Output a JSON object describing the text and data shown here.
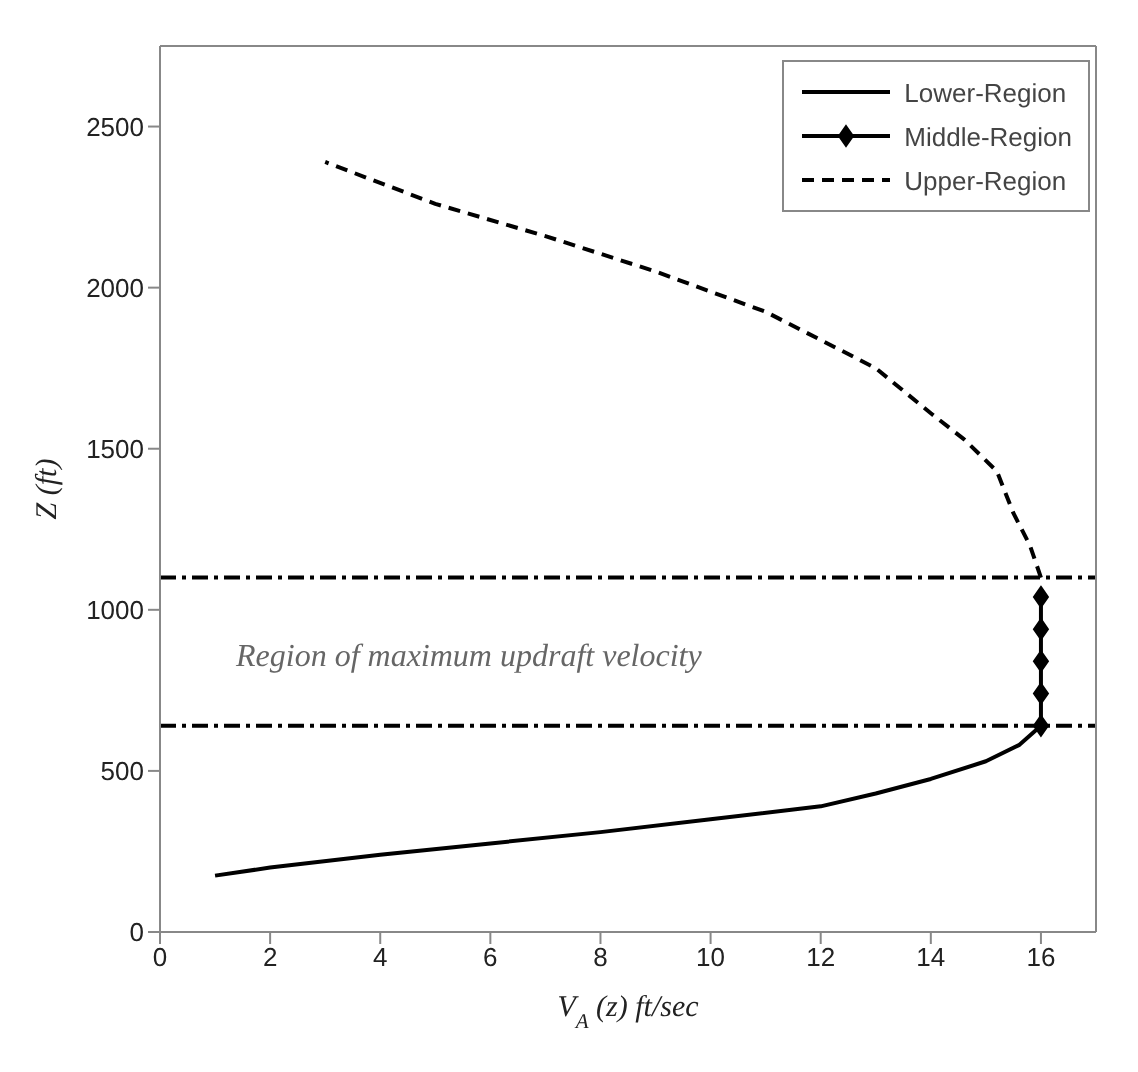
{
  "chart_data": {
    "type": "line",
    "xlabel": "V$_{A}$ (z) ft/sec",
    "ylabel": "Z (ft)",
    "xlim": [
      0,
      17
    ],
    "xticks": [
      0,
      2,
      4,
      6,
      8,
      10,
      12,
      14,
      16
    ],
    "ylim": [
      0,
      2750
    ],
    "yticks": [
      0,
      500,
      1000,
      1500,
      2000,
      2500
    ],
    "legend": "top right",
    "grid": false,
    "series": [
      {
        "name": "Lower-Region",
        "color": "#000000",
        "line_style": "solid",
        "marker": "none",
        "x": [
          1,
          2,
          4,
          6,
          8,
          10,
          12,
          13,
          14,
          15,
          15.6,
          16
        ],
        "values": [
          175,
          200,
          240,
          275,
          310,
          350,
          390,
          430,
          475,
          530,
          580,
          640
        ]
      },
      {
        "name": "Middle-Region",
        "color": "#000000",
        "line_style": "solid",
        "marker": "diamond",
        "x": [
          16,
          16,
          16,
          16,
          16
        ],
        "values": [
          640,
          740,
          840,
          940,
          1040
        ]
      },
      {
        "name": "Upper-Region",
        "color": "#000000",
        "line_style": "dashed",
        "marker": "none",
        "x": [
          16,
          15.8,
          15.5,
          15.2,
          14.6,
          14,
          13,
          11,
          9,
          7,
          5,
          3
        ],
        "values": [
          1100,
          1200,
          1300,
          1430,
          1530,
          1610,
          1750,
          1925,
          2050,
          2160,
          2260,
          2390
        ]
      }
    ],
    "ref_lines": [
      {
        "axis": "y",
        "value": 1100,
        "label": null,
        "color": "#000000",
        "line_style": "dashdot"
      },
      {
        "axis": "y",
        "value": 640,
        "label": null,
        "color": "#000000",
        "line_style": "dashdot"
      }
    ],
    "annotations": [
      "Region of maximum updraft velocity"
    ]
  }
}
